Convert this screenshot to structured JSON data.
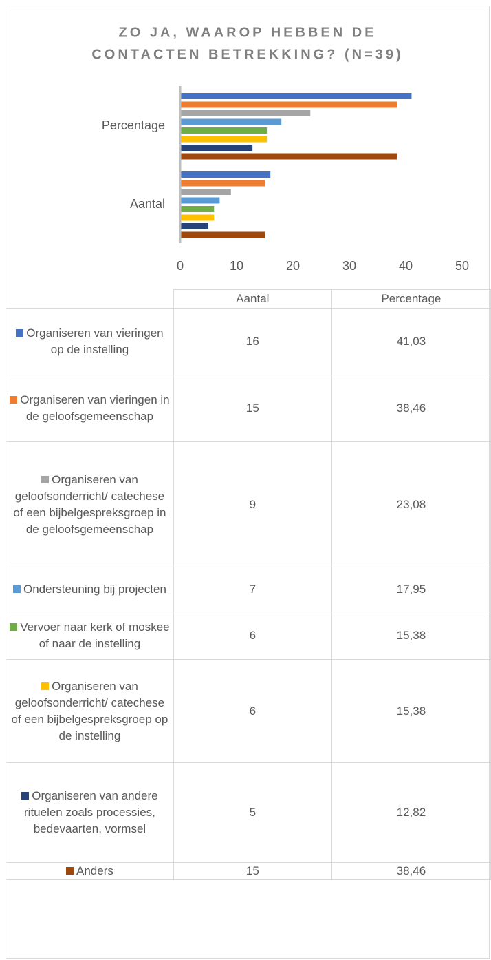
{
  "chart_data": {
    "type": "bar",
    "orientation": "horizontal",
    "title": [
      "ZO JA, WAAROP HEBBEN DE",
      "CONTACTEN BETREKKING? (N=39)"
    ],
    "categories": [
      "Aantal",
      "Percentage"
    ],
    "xlim": [
      0,
      50
    ],
    "xticks": [
      0,
      10,
      20,
      30,
      40,
      50
    ],
    "series": [
      {
        "name": "Organiseren van vieringen op de instelling",
        "color": "#4472c4",
        "values": [
          16,
          41.03
        ],
        "value_labels": [
          "16",
          "41,03"
        ]
      },
      {
        "name": "Organiseren van vieringen in de geloofsgemeenschap",
        "color": "#ed7d31",
        "values": [
          15,
          38.46
        ],
        "value_labels": [
          "15",
          "38,46"
        ]
      },
      {
        "name": "Organiseren van geloofsonderricht/ catechese of een bijbelgespreksgroep in de geloofsgemeenschap",
        "color": "#a5a5a5",
        "values": [
          9,
          23.08
        ],
        "value_labels": [
          "9",
          "23,08"
        ]
      },
      {
        "name": "Ondersteuning bij projecten",
        "color": "#5b9bd5",
        "values": [
          7,
          17.95
        ],
        "value_labels": [
          "7",
          "17,95"
        ]
      },
      {
        "name": "Vervoer naar kerk of moskee of naar de instelling",
        "color": "#70ad47",
        "values": [
          6,
          15.38
        ],
        "value_labels": [
          "6",
          "15,38"
        ]
      },
      {
        "name": "Organiseren van geloofsonderricht/ catechese of een bijbelgespreksgroep op de instelling",
        "color": "#ffc000",
        "values": [
          6,
          15.38
        ],
        "value_labels": [
          "6",
          "15,38"
        ]
      },
      {
        "name": "Organiseren van andere rituelen zoals processies, bedevaarten, vormsel",
        "color": "#264478",
        "values": [
          5,
          12.82
        ],
        "value_labels": [
          "5",
          "12,82"
        ]
      },
      {
        "name": "Anders",
        "color": "#9e480e",
        "values": [
          15,
          38.46
        ],
        "value_labels": [
          "15",
          "38,46"
        ]
      }
    ]
  }
}
